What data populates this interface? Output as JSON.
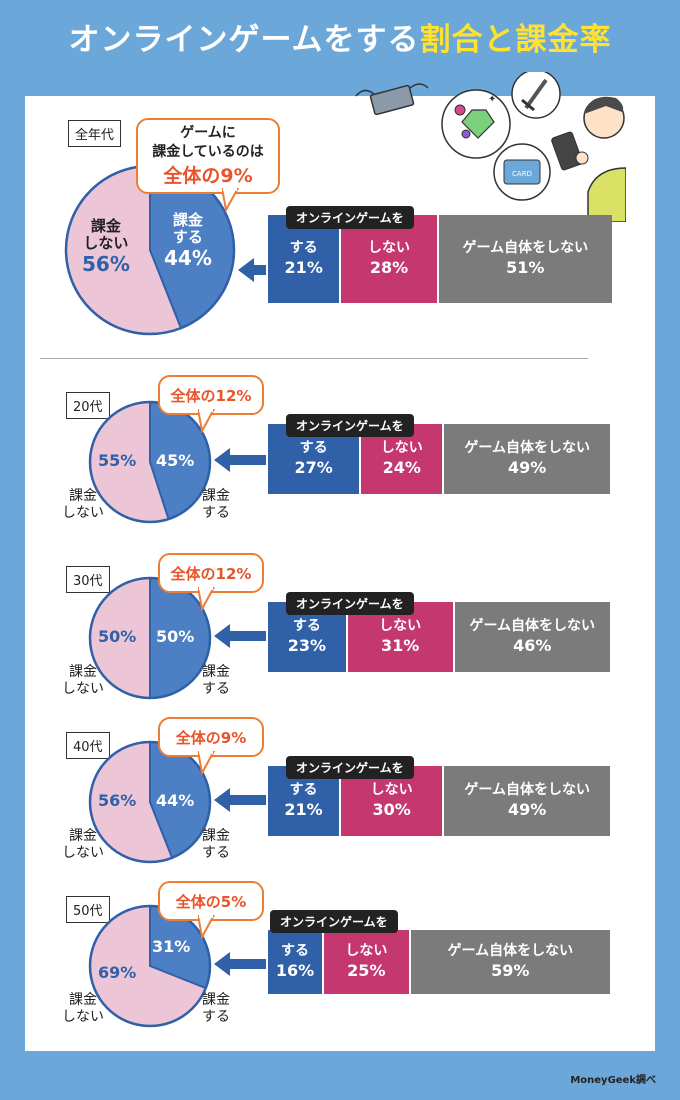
{
  "title": {
    "main": "オンラインゲームをする",
    "highlight": "割合と課金率"
  },
  "credit": "MoneyGeek調べ",
  "stack_header": "オンラインゲームを",
  "pie_labels": {
    "pay": "課金\nする",
    "nopay": "課金\nしない"
  },
  "bar_labels": {
    "do": "する",
    "not": "しない",
    "none": "ゲーム自体をしない"
  },
  "colors": {
    "pay": "#4d7fc4",
    "nopay": "#ecc6d6",
    "do": "#2f60a8",
    "not": "#c4386f",
    "none": "#7b7b7b",
    "accent": "#e8552a"
  },
  "illustration_card_text": "CARD",
  "chart_data": [
    {
      "type": "pie",
      "group": "全年代",
      "bubble_prefix": "ゲームに\n課金しているのは",
      "bubble_value": "全体の9%",
      "slices": [
        {
          "name": "課金する",
          "value": 44
        },
        {
          "name": "課金しない",
          "value": 56
        }
      ],
      "stack": [
        21,
        28,
        51
      ]
    },
    {
      "type": "pie",
      "group": "20代",
      "bubble_value": "全体の12%",
      "slices": [
        {
          "name": "課金する",
          "value": 45
        },
        {
          "name": "課金しない",
          "value": 55
        }
      ],
      "stack": [
        27,
        24,
        49
      ]
    },
    {
      "type": "pie",
      "group": "30代",
      "bubble_value": "全体の12%",
      "slices": [
        {
          "name": "課金する",
          "value": 50
        },
        {
          "name": "課金しない",
          "value": 50
        }
      ],
      "stack": [
        23,
        31,
        46
      ]
    },
    {
      "type": "pie",
      "group": "40代",
      "bubble_value": "全体の9%",
      "slices": [
        {
          "name": "課金する",
          "value": 44
        },
        {
          "name": "課金しない",
          "value": 56
        }
      ],
      "stack": [
        21,
        30,
        49
      ]
    },
    {
      "type": "pie",
      "group": "50代",
      "bubble_value": "全体の5%",
      "slices": [
        {
          "name": "課金する",
          "value": 31
        },
        {
          "name": "課金しない",
          "value": 69
        }
      ],
      "stack": [
        16,
        25,
        59
      ]
    }
  ]
}
